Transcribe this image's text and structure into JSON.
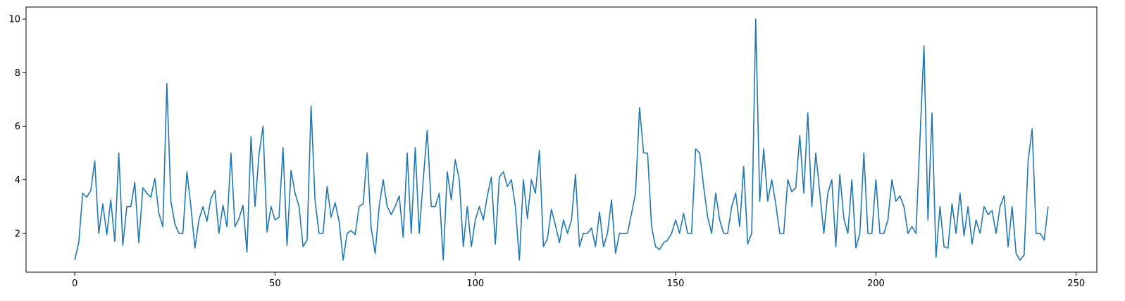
{
  "chart_data": {
    "type": "line",
    "title": "",
    "xlabel": "",
    "ylabel": "",
    "xlim": [
      -12.15,
      255.15
    ],
    "ylim": [
      0.55,
      10.45
    ],
    "grid": false,
    "x_ticks": [
      0,
      50,
      100,
      150,
      200,
      250
    ],
    "y_ticks": [
      2,
      4,
      6,
      8,
      10
    ],
    "line_color": "#1f77b4",
    "series": [
      {
        "values": [
          1,
          1.65,
          3.5,
          3.35,
          3.6,
          4.7,
          2,
          3.1,
          1.95,
          3.25,
          1.7,
          5,
          1.55,
          3,
          3,
          3.9,
          1.65,
          3.7,
          3.5,
          3.35,
          4.05,
          2.75,
          2.25,
          7.6,
          3.2,
          2.35,
          2,
          2,
          4.3,
          3,
          1.45,
          2.5,
          3,
          2.45,
          3.3,
          3.6,
          2,
          3.05,
          2.25,
          5,
          2.25,
          2.55,
          3.05,
          1.3,
          5.6,
          3,
          4.95,
          6,
          2.05,
          3,
          2.5,
          2.6,
          5.2,
          1.55,
          4.35,
          3.5,
          3,
          1.5,
          1.75,
          6.75,
          3.2,
          2,
          2,
          3.75,
          2.6,
          3.15,
          2.45,
          1,
          2,
          2.1,
          1.95,
          3,
          3.1,
          5,
          2.2,
          1.25,
          3,
          4,
          3,
          2.7,
          3,
          3.4,
          1.85,
          5,
          2,
          5.2,
          2,
          4,
          5.85,
          3,
          3,
          3.5,
          1,
          4.3,
          3.25,
          4.75,
          4,
          1.5,
          3,
          1.5,
          2.5,
          3,
          2.5,
          3.4,
          4.1,
          1.6,
          4.1,
          4.3,
          3.75,
          4,
          3,
          1,
          4,
          2.55,
          4,
          3.5,
          5.1,
          1.5,
          1.8,
          2.9,
          2.3,
          1.65,
          2.5,
          2,
          2.5,
          4.2,
          1.5,
          2,
          2,
          2.2,
          1.5,
          2.8,
          1.5,
          2,
          3.25,
          1.25,
          2,
          2,
          2,
          2.75,
          3.5,
          6.7,
          5,
          5,
          2.25,
          1.5,
          1.4,
          1.65,
          1.75,
          2,
          2.5,
          2,
          2.75,
          2,
          2,
          5.15,
          5,
          3.75,
          2.6,
          2,
          3.5,
          2.5,
          2,
          2,
          3,
          3.5,
          2.25,
          4.5,
          1.6,
          2,
          10,
          3.2,
          5.15,
          3.2,
          4,
          3.1,
          2,
          2,
          4,
          3.55,
          3.7,
          5.65,
          3.5,
          6.5,
          3,
          5,
          3.5,
          2,
          3.5,
          4,
          1.5,
          4.2,
          2.55,
          2,
          4,
          1.45,
          2,
          5,
          2,
          2,
          4,
          2,
          2,
          2.5,
          4,
          3.2,
          3.4,
          3,
          2,
          2.25,
          2,
          5.5,
          9,
          2.5,
          6.5,
          1.1,
          3,
          1.5,
          1.45,
          3.1,
          2,
          3.5,
          1.9,
          3,
          1.6,
          2.5,
          2,
          3,
          2.7,
          2.85,
          2,
          3,
          3.4,
          1.5,
          3,
          1.25,
          1,
          1.2,
          4.7,
          5.9,
          2,
          2,
          1.75,
          3
        ]
      }
    ]
  }
}
